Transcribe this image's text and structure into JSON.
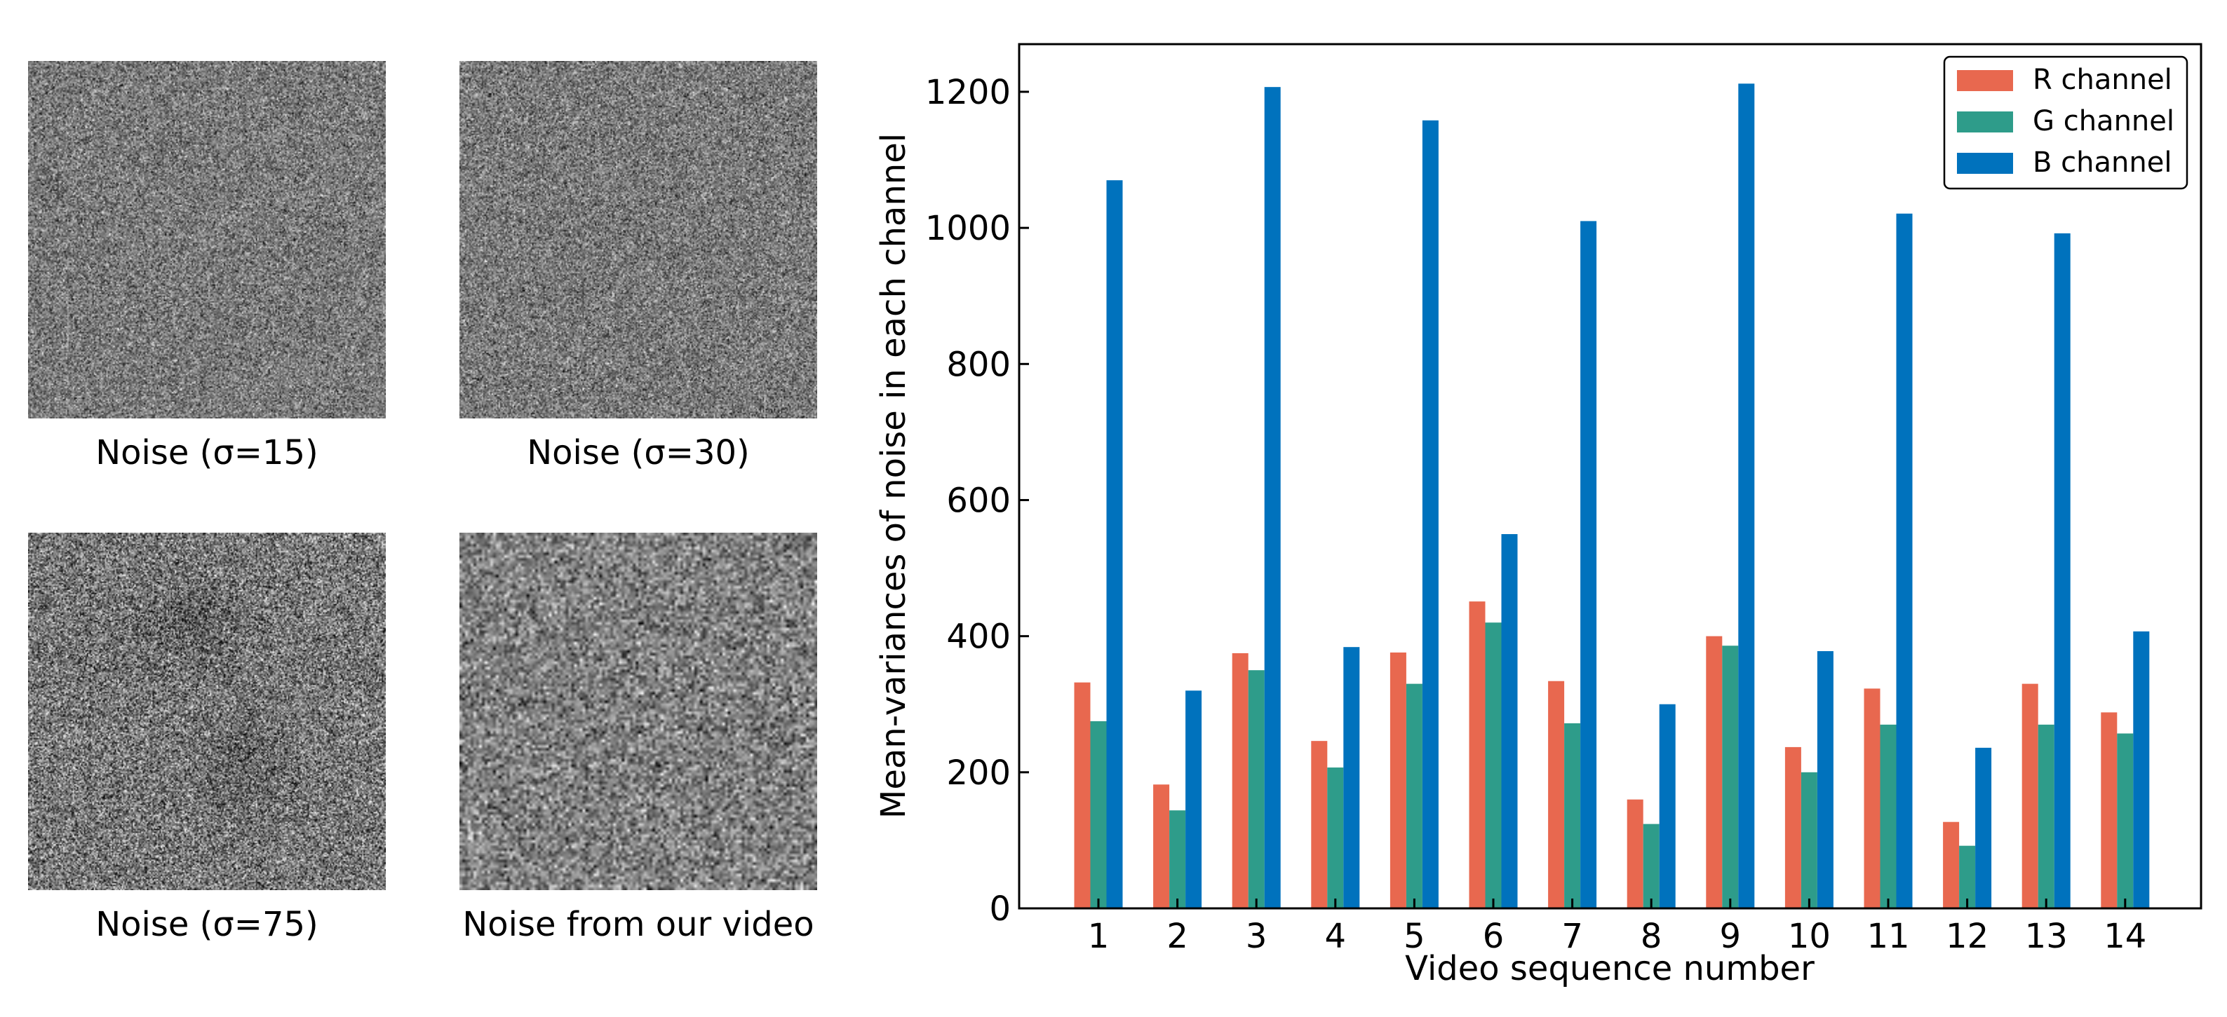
{
  "panels": [
    {
      "caption": "Noise (σ=15)",
      "pattern": "fine-noise"
    },
    {
      "caption": "Noise (σ=30)",
      "pattern": "fine-noise"
    },
    {
      "caption": "Noise (σ=75)",
      "pattern": "fine-noise-dark-blotches"
    },
    {
      "caption": "Noise from our video",
      "pattern": "coarse-noise"
    }
  ],
  "chart_data": {
    "type": "bar",
    "title": "",
    "xlabel": "Video sequence number",
    "ylabel": "Mean-variances of noise in each channel",
    "categories": [
      "1",
      "2",
      "3",
      "4",
      "5",
      "6",
      "7",
      "8",
      "9",
      "10",
      "11",
      "12",
      "13",
      "14"
    ],
    "ylim": [
      0,
      1270
    ],
    "yticks": [
      0,
      200,
      400,
      600,
      800,
      1000,
      1200
    ],
    "grid": false,
    "legend_position": "top-right",
    "series": [
      {
        "name": "R channel",
        "color": "#E8684F",
        "values": [
          332,
          182,
          375,
          246,
          376,
          451,
          334,
          160,
          400,
          237,
          323,
          127,
          330,
          288
        ]
      },
      {
        "name": "G channel",
        "color": "#2E9C8A",
        "values": [
          275,
          144,
          350,
          207,
          330,
          420,
          272,
          124,
          386,
          200,
          270,
          92,
          270,
          257
        ]
      },
      {
        "name": "B channel",
        "color": "#0072BD",
        "values": [
          1070,
          320,
          1207,
          384,
          1158,
          550,
          1010,
          300,
          1212,
          378,
          1021,
          236,
          992,
          407
        ]
      }
    ]
  }
}
